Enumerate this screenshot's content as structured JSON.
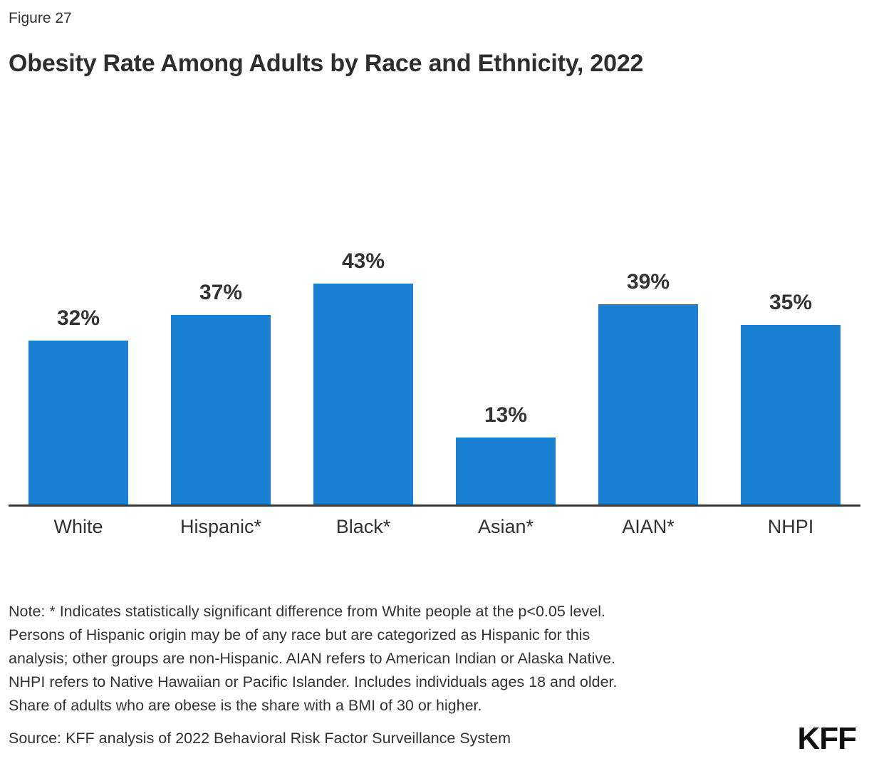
{
  "header": {
    "figure_label": "Figure 27",
    "title": "Obesity Rate Among Adults by Race and Ethnicity, 2022"
  },
  "chart_data": {
    "type": "bar",
    "categories": [
      "White",
      "Hispanic*",
      "Black*",
      "Asian*",
      "AIAN*",
      "NHPI"
    ],
    "values": [
      32,
      37,
      43,
      13,
      39,
      35
    ],
    "value_labels": [
      "32%",
      "37%",
      "43%",
      "13%",
      "39%",
      "35%"
    ],
    "title": "Obesity Rate Among Adults by Race and Ethnicity, 2022",
    "xlabel": "",
    "ylabel": "",
    "ylim": [
      0,
      50
    ],
    "grid": false,
    "legend": "none",
    "bar_color": "#1a80d2",
    "axis_line_color": "#3b3b3b"
  },
  "footer": {
    "note": "Note: * Indicates statistically significant difference from White people at the p<0.05 level.\nPersons of Hispanic origin may be of any race but are categorized as Hispanic for this\nanalysis; other groups are non-Hispanic. AIAN refers to American Indian or Alaska Native.\nNHPI refers to Native Hawaiian or Pacific Islander. Includes individuals ages 18 and older.\nShare of adults who are obese is the share with a BMI of 30 or higher.",
    "source": "Source: KFF analysis of 2022 Behavioral Risk Factor Surveillance System",
    "logo": "KFF"
  }
}
